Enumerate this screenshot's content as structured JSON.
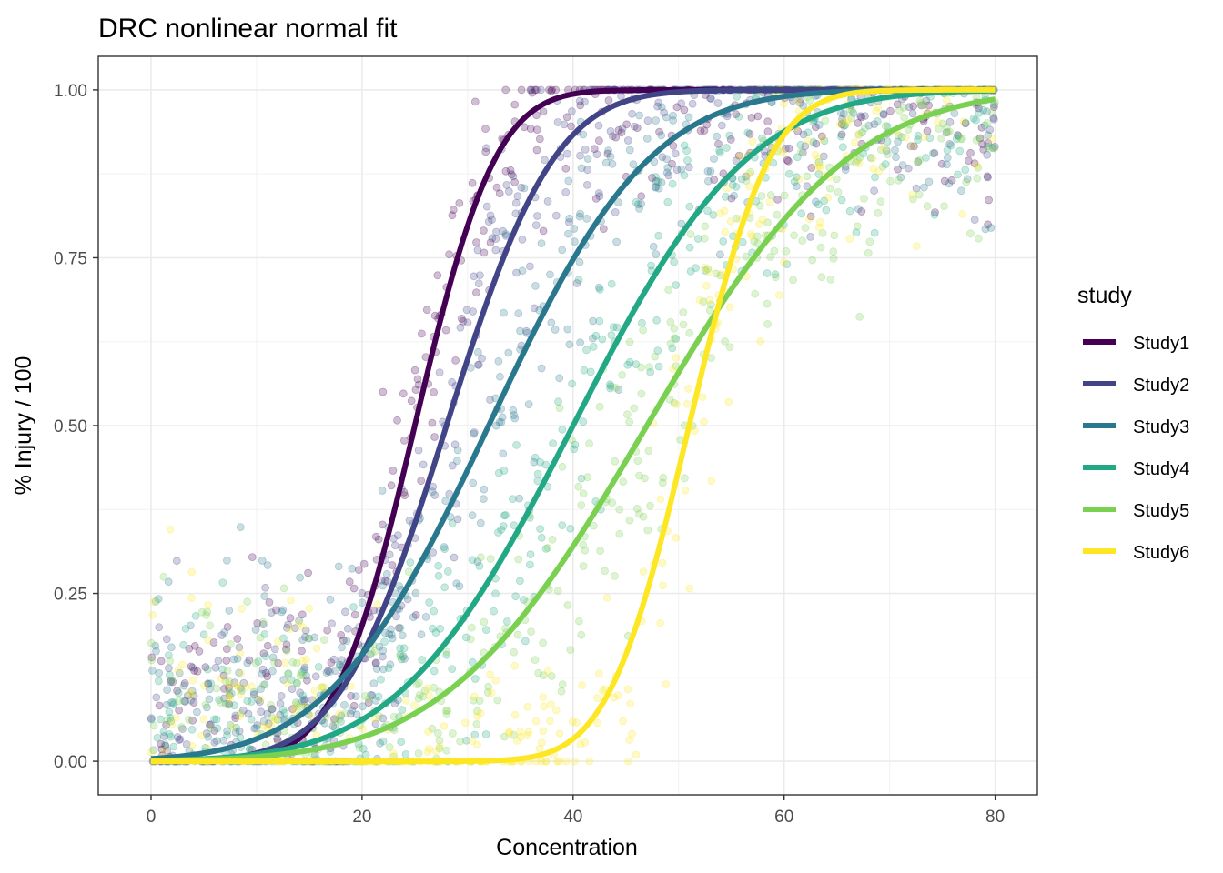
{
  "chart_data": {
    "type": "scatter",
    "title": "DRC nonlinear normal fit",
    "xlabel": "Concentration",
    "ylabel": "% Injury / 100",
    "xlim": [
      -5,
      84
    ],
    "ylim": [
      -0.05,
      1.05
    ],
    "x_ticks": [
      0,
      20,
      40,
      60,
      80
    ],
    "x_tick_labels": [
      "0",
      "20",
      "40",
      "60",
      "80"
    ],
    "y_ticks": [
      0,
      0.25,
      0.5,
      0.75,
      1
    ],
    "y_tick_labels": [
      "0.00",
      "0.25",
      "0.50",
      "0.75",
      "1.00"
    ],
    "grid": true,
    "legend": {
      "title": "study",
      "position": "right"
    },
    "series": [
      {
        "name": "Study1",
        "color": "#440154",
        "mean": 25,
        "sd": 6,
        "x_range": [
          0,
          80
        ]
      },
      {
        "name": "Study2",
        "color": "#414487",
        "mean": 28,
        "sd": 8,
        "x_range": [
          0,
          80
        ]
      },
      {
        "name": "Study3",
        "color": "#2A788E",
        "mean": 32,
        "sd": 12,
        "x_range": [
          0,
          80
        ]
      },
      {
        "name": "Study4",
        "color": "#22A884",
        "mean": 40,
        "sd": 13,
        "x_range": [
          0,
          80
        ]
      },
      {
        "name": "Study5",
        "color": "#7AD151",
        "mean": 47,
        "sd": 15,
        "x_range": [
          0,
          80
        ]
      },
      {
        "name": "Study6",
        "color": "#FDE725",
        "mean": 51,
        "sd": 6,
        "x_range": [
          0,
          80
        ]
      }
    ],
    "points_per_series": 400
  }
}
